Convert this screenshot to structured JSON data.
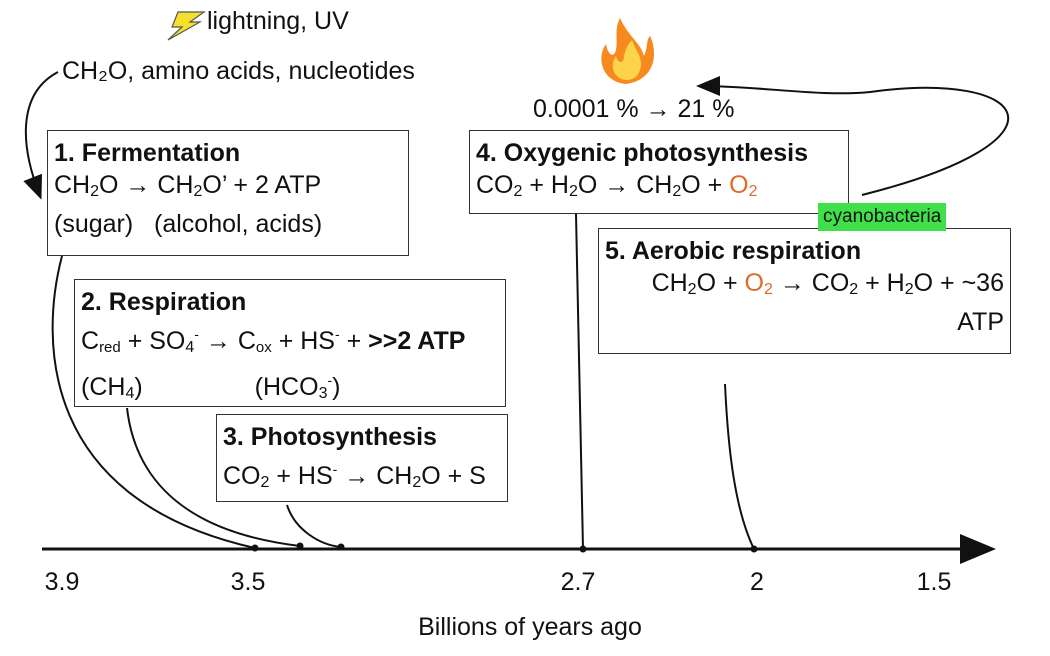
{
  "header": {
    "energy_label": "lightning, UV",
    "prebiotic_label": "CH₂O, amino acids, nucleotides",
    "oxygen_change": "0.0001 % → 21 %"
  },
  "boxes": {
    "fermentation": {
      "title": "1. Fermentation",
      "line1_a": "CH",
      "line1_b": "O → CH",
      "line1_c": "O’ + 2 ATP",
      "line2": "(sugar)   (alcohol, acids)"
    },
    "respiration": {
      "title": "2. Respiration",
      "c": "C",
      "red": "red",
      "plus_so": " + SO",
      "four": "4",
      "minus1": "-",
      "arrow_c": " → C",
      "ox": "ox",
      "plus_hs": " + HS",
      "minus2": "-",
      "plus": " + ",
      "atp": ">>2 ATP",
      "ch4_open": "(CH",
      "ch4_four": "4",
      "ch4_close": ")",
      "hco_open": "(HCO",
      "hco_three": "3",
      "hco_minus": "-",
      "hco_close": ")"
    },
    "photosynthesis": {
      "title": "3. Photosynthesis",
      "a": "CO",
      "b": " + HS",
      "minus": "-",
      "c": " → CH",
      "d": "O + S"
    },
    "oxygenic": {
      "title": "4. Oxygenic photosynthesis",
      "a": "CO",
      "b": " + H",
      "c": "O → CH",
      "d": "O + ",
      "o": "O"
    },
    "aerobic": {
      "title": "5. Aerobic respiration",
      "a": "CH",
      "b": "O + ",
      "o": "O",
      "c": " → CO",
      "d": " + H",
      "e": "O + ~36",
      "atp": "ATP"
    },
    "two": "2"
  },
  "tag": {
    "cyanobacteria": "cyanobacteria"
  },
  "chart_data": {
    "type": "timeline",
    "xlabel": "Billions of years ago",
    "ticks": [
      "3.9",
      "3.5",
      "2.7",
      "2",
      "1.5"
    ],
    "events": [
      {
        "name": "1. Fermentation",
        "time": 3.5
      },
      {
        "name": "2. Respiration",
        "time": 3.4
      },
      {
        "name": "3. Photosynthesis",
        "time": 3.3
      },
      {
        "name": "4. Oxygenic photosynthesis",
        "time": 2.7
      },
      {
        "name": "5. Aerobic respiration",
        "time": 2.0
      }
    ]
  },
  "icons": {
    "energy": "lightning-icon",
    "fire": "fire-icon"
  },
  "colors": {
    "o2": "#e06a2c",
    "cyanobacteria_bg": "#3fe04a",
    "lightning": "#f5e12c"
  }
}
